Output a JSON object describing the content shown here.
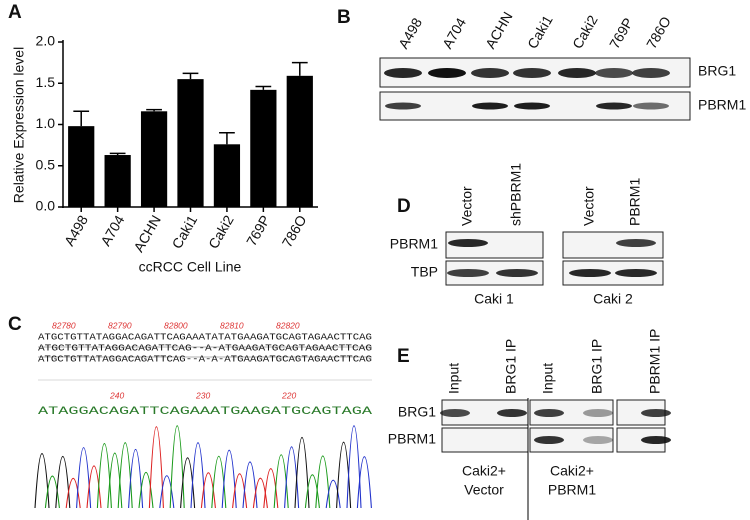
{
  "chart_data": {
    "type": "bar",
    "panel_label": "A",
    "y_label": "Relative Expression level",
    "x_label": "ccRCC Cell Line",
    "categories": [
      "A498",
      "A704",
      "ACHN",
      "Caki1",
      "Caki2",
      "769P",
      "786O"
    ],
    "values": [
      0.98,
      0.63,
      1.16,
      1.55,
      0.76,
      1.42,
      1.59
    ],
    "errors": [
      0.18,
      0.02,
      0.02,
      0.07,
      0.14,
      0.04,
      0.16
    ],
    "color": "#000000",
    "ylim": [
      0,
      2
    ],
    "yticks": [
      {
        "value": 0,
        "label": "0.0"
      },
      {
        "value": 0.5,
        "label": "0.5"
      },
      {
        "value": 1,
        "label": "1.0"
      },
      {
        "value": 1.5,
        "label": "1.5"
      },
      {
        "value": 2,
        "label": "2.0"
      }
    ]
  },
  "panel_b": {
    "label": "B",
    "lanes": [
      "A498",
      "A704",
      "ACHN",
      "Caki1",
      "Caki2",
      "769P",
      "786O"
    ],
    "rows": [
      "BRG1",
      "PBRM1"
    ]
  },
  "panel_c": {
    "label": "C",
    "positions": [
      "82780",
      "82790",
      "82800",
      "82810",
      "82820"
    ],
    "alignment": [
      "ATGCTGTTATAGGACAGATTCAGAAATATATGAAGATGCAGTAGAACTTCAG",
      "ATGCTGTTATAGGACAGATTCAG--A-ATGAAGATGCAGTAGAACTTCAG",
      "ATGCTGTTATAGGACAGATTCAG--A-A-ATGAAGATGCAGTAGAACTTCAG"
    ],
    "trace_positions": [
      "240",
      "230",
      "220"
    ],
    "trace_sequence": "ATAGGACAGATTCAGAAATGAAGATGCAGTAGA"
  },
  "panel_d": {
    "label": "D",
    "lanes": [
      "Vector",
      "shPBRM1",
      "Vector",
      "PBRM1"
    ],
    "rows": [
      "PBRM1",
      "TBP"
    ],
    "groups": [
      "Caki 1",
      "Caki 2"
    ]
  },
  "panel_e": {
    "label": "E",
    "lanes": [
      "Input",
      "BRG1 IP",
      "Input",
      "BRG1 IP",
      "PBRM1 IP"
    ],
    "rows": [
      "BRG1",
      "PBRM1"
    ],
    "groups": [
      [
        "Caki2+",
        "Vector"
      ],
      [
        "Caki2+",
        "PBRM1"
      ]
    ]
  }
}
